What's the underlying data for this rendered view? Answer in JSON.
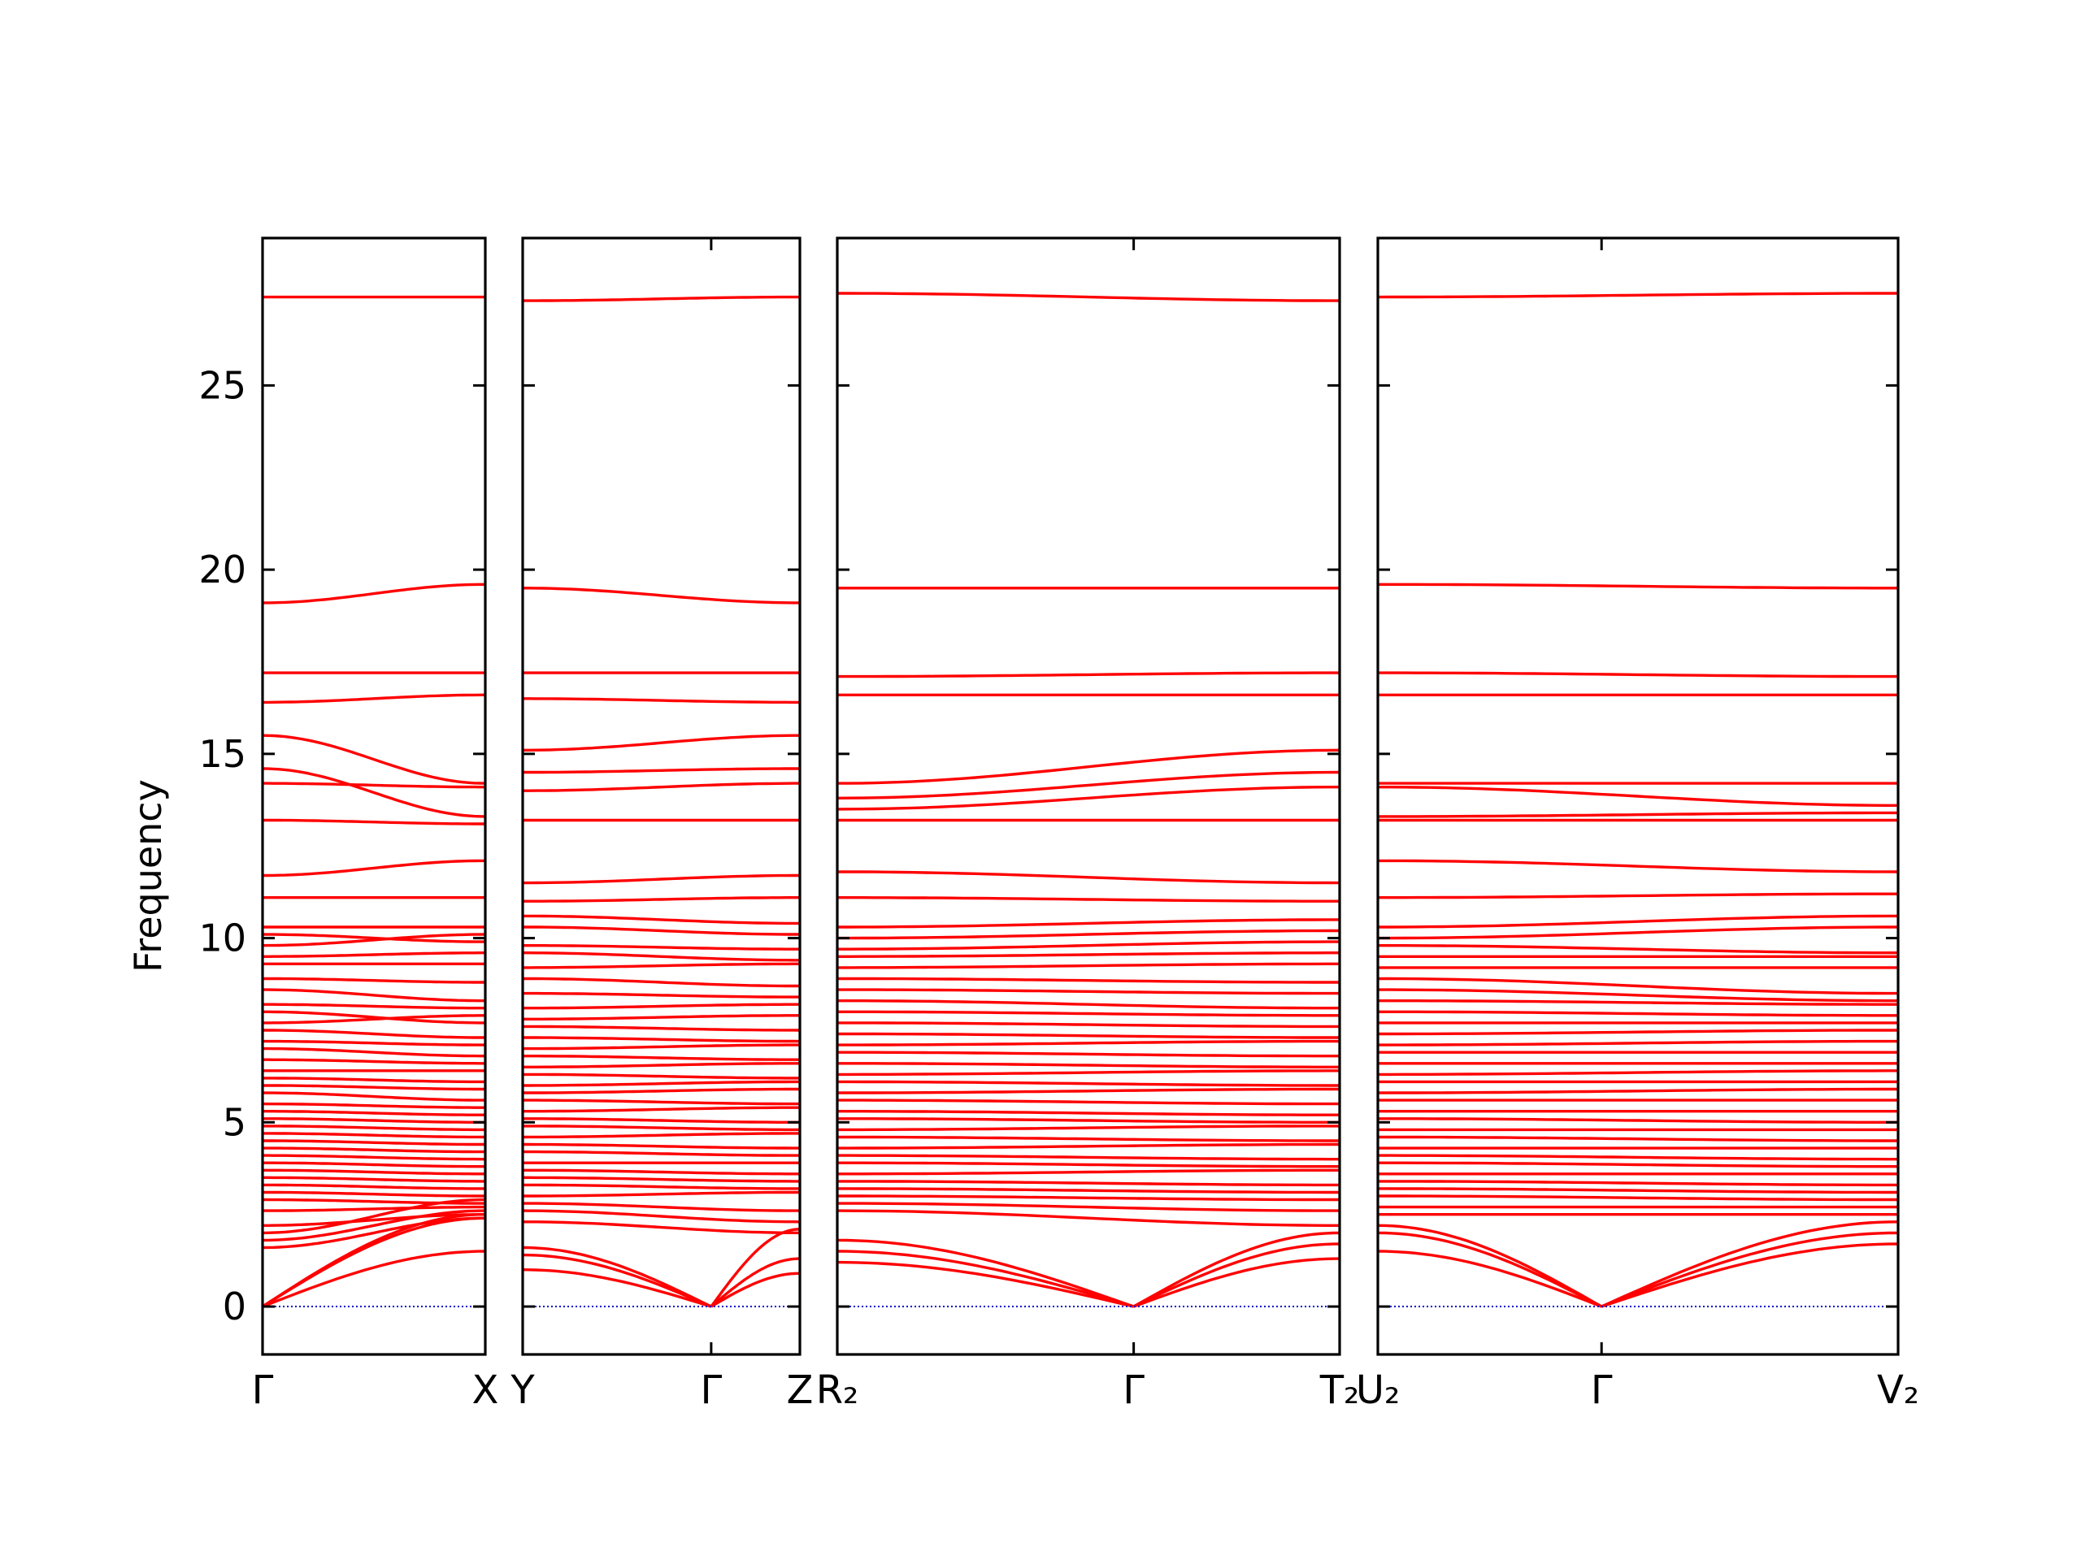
{
  "chart_data": {
    "type": "line",
    "title": "",
    "ylabel": "Frequency",
    "xlabel": "",
    "ylim": [
      -1.3,
      29
    ],
    "yticks": [
      0,
      5,
      10,
      15,
      20,
      25
    ],
    "colors": {
      "bands": "#ff0000",
      "zero_line": "#0000cc",
      "axes": "#000000"
    },
    "zero_line": {
      "y": 0,
      "style": "dotted"
    },
    "segments": [
      {
        "x_labels": [
          "Γ",
          "X"
        ],
        "x_label_positions": [
          0,
          1
        ],
        "acoustic_at": [
          0
        ],
        "acoustic_ends": [
          2.5,
          2.4,
          1.5
        ],
        "bands": [
          {
            "a": 27.4,
            "b": 27.4
          },
          {
            "a": 19.1,
            "b": 19.6
          },
          {
            "a": 17.2,
            "b": 17.2
          },
          {
            "a": 16.4,
            "b": 16.6
          },
          {
            "a": 15.5,
            "b": 14.2
          },
          {
            "a": 14.6,
            "b": 13.3
          },
          {
            "a": 14.2,
            "b": 14.1
          },
          {
            "a": 13.2,
            "b": 13.1
          },
          {
            "a": 11.7,
            "b": 12.1
          },
          {
            "a": 11.1,
            "b": 11.1
          },
          {
            "a": 10.3,
            "b": 10.3
          },
          {
            "a": 10.1,
            "b": 9.9
          },
          {
            "a": 9.8,
            "b": 10.1
          },
          {
            "a": 9.5,
            "b": 9.6
          },
          {
            "a": 9.3,
            "b": 9.3
          },
          {
            "a": 8.9,
            "b": 8.8
          },
          {
            "a": 8.6,
            "b": 8.3
          },
          {
            "a": 8.2,
            "b": 8.1
          },
          {
            "a": 8.0,
            "b": 7.7
          },
          {
            "a": 7.7,
            "b": 7.9
          },
          {
            "a": 7.5,
            "b": 7.3
          },
          {
            "a": 7.2,
            "b": 7.1
          },
          {
            "a": 7.0,
            "b": 6.8
          },
          {
            "a": 6.7,
            "b": 6.6
          },
          {
            "a": 6.4,
            "b": 6.4
          },
          {
            "a": 6.2,
            "b": 6.1
          },
          {
            "a": 6.0,
            "b": 5.9
          },
          {
            "a": 5.8,
            "b": 5.6
          },
          {
            "a": 5.5,
            "b": 5.4
          },
          {
            "a": 5.3,
            "b": 5.2
          },
          {
            "a": 5.1,
            "b": 5.0
          },
          {
            "a": 4.9,
            "b": 4.8
          },
          {
            "a": 4.7,
            "b": 4.6
          },
          {
            "a": 4.5,
            "b": 4.4
          },
          {
            "a": 4.3,
            "b": 4.2
          },
          {
            "a": 4.1,
            "b": 4.0
          },
          {
            "a": 3.9,
            "b": 3.8
          },
          {
            "a": 3.7,
            "b": 3.6
          },
          {
            "a": 3.5,
            "b": 3.4
          },
          {
            "a": 3.3,
            "b": 3.2
          },
          {
            "a": 3.1,
            "b": 3.0
          },
          {
            "a": 2.9,
            "b": 2.8
          },
          {
            "a": 2.6,
            "b": 2.7
          },
          {
            "a": 2.2,
            "b": 2.5
          },
          {
            "a": 2.0,
            "b": 2.9
          },
          {
            "a": 1.8,
            "b": 2.6
          },
          {
            "a": 1.6,
            "b": 2.4
          }
        ]
      },
      {
        "x_labels": [
          "Y",
          "Γ",
          "Z"
        ],
        "x_label_positions": [
          0,
          0.68,
          1
        ],
        "acoustic_at": [
          0.68
        ],
        "acoustic_ends": [
          1.6,
          1.4,
          1.0,
          2.1,
          1.3,
          0.9
        ],
        "bands": [
          {
            "a": 27.3,
            "b": 27.4
          },
          {
            "a": 19.5,
            "b": 19.1
          },
          {
            "a": 17.2,
            "b": 17.2
          },
          {
            "a": 16.5,
            "b": 16.4
          },
          {
            "a": 15.1,
            "b": 15.5
          },
          {
            "a": 14.5,
            "b": 14.6
          },
          {
            "a": 14.0,
            "b": 14.2
          },
          {
            "a": 13.2,
            "b": 13.2
          },
          {
            "a": 11.5,
            "b": 11.7
          },
          {
            "a": 11.0,
            "b": 11.1
          },
          {
            "a": 10.6,
            "b": 10.4
          },
          {
            "a": 10.3,
            "b": 10.1
          },
          {
            "a": 9.8,
            "b": 9.7
          },
          {
            "a": 9.6,
            "b": 9.4
          },
          {
            "a": 9.2,
            "b": 9.3
          },
          {
            "a": 8.9,
            "b": 8.7
          },
          {
            "a": 8.5,
            "b": 8.4
          },
          {
            "a": 8.1,
            "b": 8.2
          },
          {
            "a": 7.8,
            "b": 7.9
          },
          {
            "a": 7.6,
            "b": 7.5
          },
          {
            "a": 7.3,
            "b": 7.2
          },
          {
            "a": 7.0,
            "b": 7.1
          },
          {
            "a": 6.8,
            "b": 6.7
          },
          {
            "a": 6.5,
            "b": 6.6
          },
          {
            "a": 6.3,
            "b": 6.2
          },
          {
            "a": 6.0,
            "b": 6.1
          },
          {
            "a": 5.8,
            "b": 5.9
          },
          {
            "a": 5.6,
            "b": 5.5
          },
          {
            "a": 5.3,
            "b": 5.4
          },
          {
            "a": 5.1,
            "b": 5.0
          },
          {
            "a": 4.9,
            "b": 4.8
          },
          {
            "a": 4.6,
            "b": 4.7
          },
          {
            "a": 4.4,
            "b": 4.3
          },
          {
            "a": 4.2,
            "b": 4.1
          },
          {
            "a": 3.9,
            "b": 3.9
          },
          {
            "a": 3.7,
            "b": 3.6
          },
          {
            "a": 3.5,
            "b": 3.4
          },
          {
            "a": 3.3,
            "b": 3.2
          },
          {
            "a": 3.0,
            "b": 3.1
          },
          {
            "a": 2.8,
            "b": 2.6
          },
          {
            "a": 2.6,
            "b": 2.3
          },
          {
            "a": 2.3,
            "b": 2.0
          }
        ]
      },
      {
        "x_labels": [
          "R₂",
          "Γ",
          "T₂"
        ],
        "x_label_positions": [
          0,
          0.59,
          1
        ],
        "acoustic_at": [
          0.59
        ],
        "acoustic_ends": [
          1.8,
          1.5,
          1.2,
          2.0,
          1.7,
          1.3
        ],
        "bands": [
          {
            "a": 27.5,
            "b": 27.3
          },
          {
            "a": 19.5,
            "b": 19.5
          },
          {
            "a": 17.1,
            "b": 17.2
          },
          {
            "a": 16.6,
            "b": 16.6
          },
          {
            "a": 14.2,
            "b": 15.1
          },
          {
            "a": 13.8,
            "b": 14.5
          },
          {
            "a": 13.5,
            "b": 14.1
          },
          {
            "a": 13.2,
            "b": 13.2
          },
          {
            "a": 11.8,
            "b": 11.5
          },
          {
            "a": 11.1,
            "b": 11.0
          },
          {
            "a": 10.3,
            "b": 10.5
          },
          {
            "a": 10.0,
            "b": 10.2
          },
          {
            "a": 9.7,
            "b": 9.9
          },
          {
            "a": 9.5,
            "b": 9.6
          },
          {
            "a": 9.2,
            "b": 9.3
          },
          {
            "a": 8.9,
            "b": 8.8
          },
          {
            "a": 8.6,
            "b": 8.5
          },
          {
            "a": 8.3,
            "b": 8.1
          },
          {
            "a": 8.0,
            "b": 7.9
          },
          {
            "a": 7.7,
            "b": 7.6
          },
          {
            "a": 7.4,
            "b": 7.3
          },
          {
            "a": 7.1,
            "b": 7.2
          },
          {
            "a": 6.9,
            "b": 6.8
          },
          {
            "a": 6.6,
            "b": 6.5
          },
          {
            "a": 6.3,
            "b": 6.4
          },
          {
            "a": 6.1,
            "b": 6.0
          },
          {
            "a": 5.8,
            "b": 5.9
          },
          {
            "a": 5.6,
            "b": 5.5
          },
          {
            "a": 5.3,
            "b": 5.2
          },
          {
            "a": 5.1,
            "b": 5.0
          },
          {
            "a": 4.8,
            "b": 4.9
          },
          {
            "a": 4.6,
            "b": 4.5
          },
          {
            "a": 4.3,
            "b": 4.4
          },
          {
            "a": 4.1,
            "b": 4.0
          },
          {
            "a": 3.9,
            "b": 3.8
          },
          {
            "a": 3.6,
            "b": 3.7
          },
          {
            "a": 3.4,
            "b": 3.3
          },
          {
            "a": 3.2,
            "b": 3.1
          },
          {
            "a": 3.0,
            "b": 2.9
          },
          {
            "a": 2.8,
            "b": 2.6
          },
          {
            "a": 2.6,
            "b": 2.2
          }
        ]
      },
      {
        "x_labels": [
          "U₂",
          "Γ",
          "V₂"
        ],
        "x_label_positions": [
          0,
          0.43,
          1
        ],
        "acoustic_at": [
          0.43
        ],
        "acoustic_ends": [
          2.2,
          2.0,
          1.5,
          2.3,
          2.0,
          1.7
        ],
        "bands": [
          {
            "a": 27.4,
            "b": 27.5
          },
          {
            "a": 19.6,
            "b": 19.5
          },
          {
            "a": 17.2,
            "b": 17.1
          },
          {
            "a": 16.6,
            "b": 16.6
          },
          {
            "a": 14.2,
            "b": 14.2
          },
          {
            "a": 14.1,
            "b": 13.6
          },
          {
            "a": 13.3,
            "b": 13.4
          },
          {
            "a": 13.2,
            "b": 13.2
          },
          {
            "a": 12.1,
            "b": 11.8
          },
          {
            "a": 11.1,
            "b": 11.2
          },
          {
            "a": 10.3,
            "b": 10.6
          },
          {
            "a": 10.0,
            "b": 10.3
          },
          {
            "a": 9.8,
            "b": 9.6
          },
          {
            "a": 9.5,
            "b": 9.5
          },
          {
            "a": 9.2,
            "b": 9.2
          },
          {
            "a": 8.9,
            "b": 8.5
          },
          {
            "a": 8.6,
            "b": 8.3
          },
          {
            "a": 8.3,
            "b": 8.2
          },
          {
            "a": 8.0,
            "b": 7.9
          },
          {
            "a": 7.7,
            "b": 7.7
          },
          {
            "a": 7.4,
            "b": 7.5
          },
          {
            "a": 7.1,
            "b": 7.2
          },
          {
            "a": 6.9,
            "b": 6.9
          },
          {
            "a": 6.6,
            "b": 6.6
          },
          {
            "a": 6.3,
            "b": 6.4
          },
          {
            "a": 6.1,
            "b": 6.1
          },
          {
            "a": 5.8,
            "b": 5.9
          },
          {
            "a": 5.6,
            "b": 5.6
          },
          {
            "a": 5.3,
            "b": 5.3
          },
          {
            "a": 5.1,
            "b": 5.0
          },
          {
            "a": 4.8,
            "b": 4.8
          },
          {
            "a": 4.6,
            "b": 4.5
          },
          {
            "a": 4.3,
            "b": 4.3
          },
          {
            "a": 4.1,
            "b": 4.0
          },
          {
            "a": 3.9,
            "b": 3.8
          },
          {
            "a": 3.6,
            "b": 3.6
          },
          {
            "a": 3.4,
            "b": 3.3
          },
          {
            "a": 3.2,
            "b": 3.1
          },
          {
            "a": 3.0,
            "b": 2.9
          },
          {
            "a": 2.7,
            "b": 2.7
          },
          {
            "a": 2.5,
            "b": 2.5
          }
        ]
      }
    ]
  }
}
